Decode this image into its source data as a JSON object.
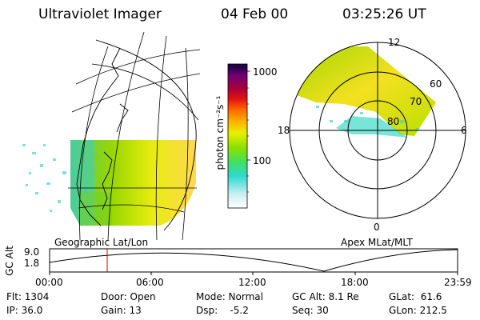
{
  "header": {
    "instrument": "Ultraviolet Imager",
    "date": "04 Feb 00",
    "time": "03:25:26 UT"
  },
  "colorbar": {
    "unit_label": "photon cm⁻²s⁻¹",
    "ticks": [
      "1000",
      "100"
    ],
    "scale": "log"
  },
  "geographic_panel": {
    "label": "Geographic Lat/Lon"
  },
  "polar_panel": {
    "label": "Apex MLat/MLT",
    "mlt_labels": [
      "12",
      "18",
      "6",
      "0"
    ],
    "lat_labels": [
      "60",
      "70",
      "80"
    ]
  },
  "altitude_plot": {
    "ylabel": "GC Alt",
    "yticks": [
      "9.0",
      "1.8"
    ],
    "xticks": [
      "00:00",
      "06:00",
      "12:00",
      "18:00",
      "23:59"
    ],
    "current_time_hours": 3.42
  },
  "footer": {
    "flt": "Flt: 1304",
    "ip": "IP: 36.0",
    "door": "Door: Open",
    "gain": "Gain: 13",
    "mode": "Mode: Normal",
    "dsp": "Dsp:    -5.2",
    "gc_alt": "GC Alt: 8.1 Re",
    "seq": "Seq: 30",
    "glat": "GLat:  61.6",
    "glon": "GLon: 212.5"
  },
  "colors": {
    "marker": "#cc0000",
    "aurora_high": "#f5d020",
    "aurora_mid": "#8fd400",
    "aurora_low": "#40d8c8"
  }
}
